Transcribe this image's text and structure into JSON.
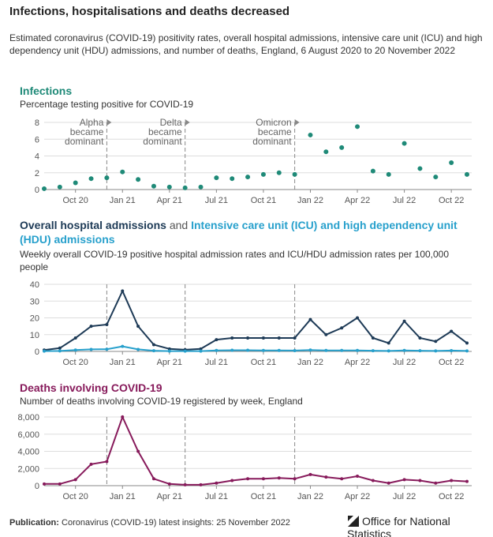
{
  "title": "Infections, hospitalisations and deaths decreased",
  "subtitle": "Estimated coronavirus (COVID-19) positivity rates, overall hospital admissions, intensive care unit (ICU) and high dependency unit (HDU) admissions, and number of deaths, England, 6 August 2020 to 20 November 2022",
  "footer": {
    "label": "Publication:",
    "text": "Coronavirus (COVID-19) latest insights: 25 November 2022",
    "logo": "Office for National Statistics"
  },
  "chart_data": [
    {
      "type": "scatter",
      "title": "Infections",
      "title_color": "#1f8a78",
      "subtitle": "Percentage testing positive for COVID-19",
      "x": [
        "2020-08",
        "2020-09",
        "2020-10",
        "2020-11",
        "2020-12",
        "2021-01",
        "2021-02",
        "2021-03",
        "2021-04",
        "2021-05",
        "2021-06",
        "2021-07",
        "2021-08",
        "2021-09",
        "2021-10",
        "2021-11",
        "2021-12",
        "2022-01",
        "2022-02",
        "2022-03",
        "2022-04",
        "2022-05",
        "2022-06",
        "2022-07",
        "2022-08",
        "2022-09",
        "2022-10",
        "2022-11"
      ],
      "series": [
        {
          "name": "Infections",
          "color": "#1f8a78",
          "values": [
            0.1,
            0.3,
            0.8,
            1.3,
            1.4,
            2.1,
            1.2,
            0.4,
            0.3,
            0.2,
            0.3,
            1.4,
            1.3,
            1.5,
            1.8,
            2.0,
            1.8,
            6.5,
            4.5,
            5.0,
            7.5,
            2.2,
            1.8,
            5.5,
            2.5,
            1.5,
            3.2,
            1.8
          ]
        }
      ],
      "xlim": [
        "2020-08",
        "2022-11"
      ],
      "xticks": [
        {
          "value": "2020-10",
          "label": "Oct 20"
        },
        {
          "value": "2021-01",
          "label": "Jan 21"
        },
        {
          "value": "2021-04",
          "label": "Apr 21"
        },
        {
          "value": "2021-07",
          "label": "Jul 21"
        },
        {
          "value": "2021-10",
          "label": "Oct 21"
        },
        {
          "value": "2022-01",
          "label": "Jan 22"
        },
        {
          "value": "2022-04",
          "label": "Apr 22"
        },
        {
          "value": "2022-07",
          "label": "Jul 22"
        },
        {
          "value": "2022-10",
          "label": "Oct 22"
        }
      ],
      "ylim": [
        0,
        8
      ],
      "yticks": [
        0,
        2,
        4,
        6,
        8
      ],
      "grid": true,
      "annotations": [
        {
          "x": "2020-12",
          "lines": [
            "Alpha",
            "became",
            "dominant"
          ]
        },
        {
          "x": "2021-05",
          "lines": [
            "Delta",
            "became",
            "dominant"
          ]
        },
        {
          "x": "2021-12",
          "lines": [
            "Omicron",
            "became",
            "dominant"
          ]
        }
      ]
    },
    {
      "type": "line",
      "title_joiner": "and",
      "subtitle": "Weekly overall COVID-19 positive hospital admission rates and ICU/HDU admission rates per 100,000 people",
      "x": [
        "2020-08",
        "2020-09",
        "2020-10",
        "2020-11",
        "2020-12",
        "2021-01",
        "2021-02",
        "2021-03",
        "2021-04",
        "2021-05",
        "2021-06",
        "2021-07",
        "2021-08",
        "2021-09",
        "2021-10",
        "2021-11",
        "2021-12",
        "2022-01",
        "2022-02",
        "2022-03",
        "2022-04",
        "2022-05",
        "2022-06",
        "2022-07",
        "2022-08",
        "2022-09",
        "2022-10",
        "2022-11"
      ],
      "series": [
        {
          "name": "Overall hospital admissions",
          "color": "#1d3a56",
          "values": [
            0.8,
            2,
            8,
            15,
            16,
            36,
            15,
            4,
            1.5,
            1,
            1.5,
            7,
            8,
            8,
            8,
            8,
            8,
            19,
            10,
            14,
            20,
            8,
            5,
            18,
            8,
            6,
            12,
            5
          ]
        },
        {
          "name": "Intensive care unit (ICU) and high dependency unit (HDU) admissions",
          "color": "#27a0cc",
          "values": [
            0.2,
            0.3,
            0.8,
            1.2,
            1.3,
            3,
            1.2,
            0.4,
            0.2,
            0.2,
            0.2,
            0.6,
            0.7,
            0.7,
            0.6,
            0.6,
            0.5,
            0.8,
            0.6,
            0.6,
            0.6,
            0.4,
            0.3,
            0.6,
            0.4,
            0.3,
            0.5,
            0.3
          ]
        }
      ],
      "xlim": [
        "2020-08",
        "2022-11"
      ],
      "xticks": [
        {
          "value": "2020-10",
          "label": "Oct 20"
        },
        {
          "value": "2021-01",
          "label": "Jan 21"
        },
        {
          "value": "2021-04",
          "label": "Apr 21"
        },
        {
          "value": "2021-07",
          "label": "Jul 21"
        },
        {
          "value": "2021-10",
          "label": "Oct 21"
        },
        {
          "value": "2022-01",
          "label": "Jan 22"
        },
        {
          "value": "2022-04",
          "label": "Apr 22"
        },
        {
          "value": "2022-07",
          "label": "Jul 22"
        },
        {
          "value": "2022-10",
          "label": "Oct 22"
        }
      ],
      "ylim": [
        0,
        40
      ],
      "yticks": [
        0,
        10,
        20,
        30,
        40
      ],
      "grid": true,
      "annotations": [
        {
          "x": "2020-12"
        },
        {
          "x": "2021-05"
        },
        {
          "x": "2021-12"
        }
      ]
    },
    {
      "type": "line",
      "title": "Deaths involving COVID-19",
      "title_color": "#871a5b",
      "subtitle": "Number of deaths involving COVID-19 registered by week, England",
      "x": [
        "2020-08",
        "2020-09",
        "2020-10",
        "2020-11",
        "2020-12",
        "2021-01",
        "2021-02",
        "2021-03",
        "2021-04",
        "2021-05",
        "2021-06",
        "2021-07",
        "2021-08",
        "2021-09",
        "2021-10",
        "2021-11",
        "2021-12",
        "2022-01",
        "2022-02",
        "2022-03",
        "2022-04",
        "2022-05",
        "2022-06",
        "2022-07",
        "2022-08",
        "2022-09",
        "2022-10",
        "2022-11"
      ],
      "series": [
        {
          "name": "Deaths involving COVID-19",
          "color": "#871a5b",
          "values": [
            200,
            200,
            700,
            2500,
            2800,
            8000,
            4000,
            800,
            200,
            100,
            100,
            300,
            600,
            800,
            800,
            900,
            800,
            1300,
            1000,
            800,
            1100,
            600,
            300,
            700,
            600,
            300,
            600,
            500
          ]
        }
      ],
      "xlim": [
        "2020-08",
        "2022-11"
      ],
      "xticks": [
        {
          "value": "2020-10",
          "label": "Oct 20"
        },
        {
          "value": "2021-01",
          "label": "Jan 21"
        },
        {
          "value": "2021-04",
          "label": "Apr 21"
        },
        {
          "value": "2021-07",
          "label": "Jul 21"
        },
        {
          "value": "2021-10",
          "label": "Oct 21"
        },
        {
          "value": "2022-01",
          "label": "Jan 22"
        },
        {
          "value": "2022-04",
          "label": "Apr 22"
        },
        {
          "value": "2022-07",
          "label": "Jul 22"
        },
        {
          "value": "2022-10",
          "label": "Oct 22"
        }
      ],
      "ylim": [
        0,
        8000
      ],
      "yticks": [
        0,
        {
          "value": 2000,
          "label": "2,000"
        },
        {
          "value": 4000,
          "label": "4,000"
        },
        {
          "value": 6000,
          "label": "6,000"
        },
        {
          "value": 8000,
          "label": "8,000"
        }
      ],
      "grid": true,
      "annotations": [
        {
          "x": "2020-12"
        },
        {
          "x": "2021-05"
        },
        {
          "x": "2021-12"
        }
      ]
    }
  ]
}
